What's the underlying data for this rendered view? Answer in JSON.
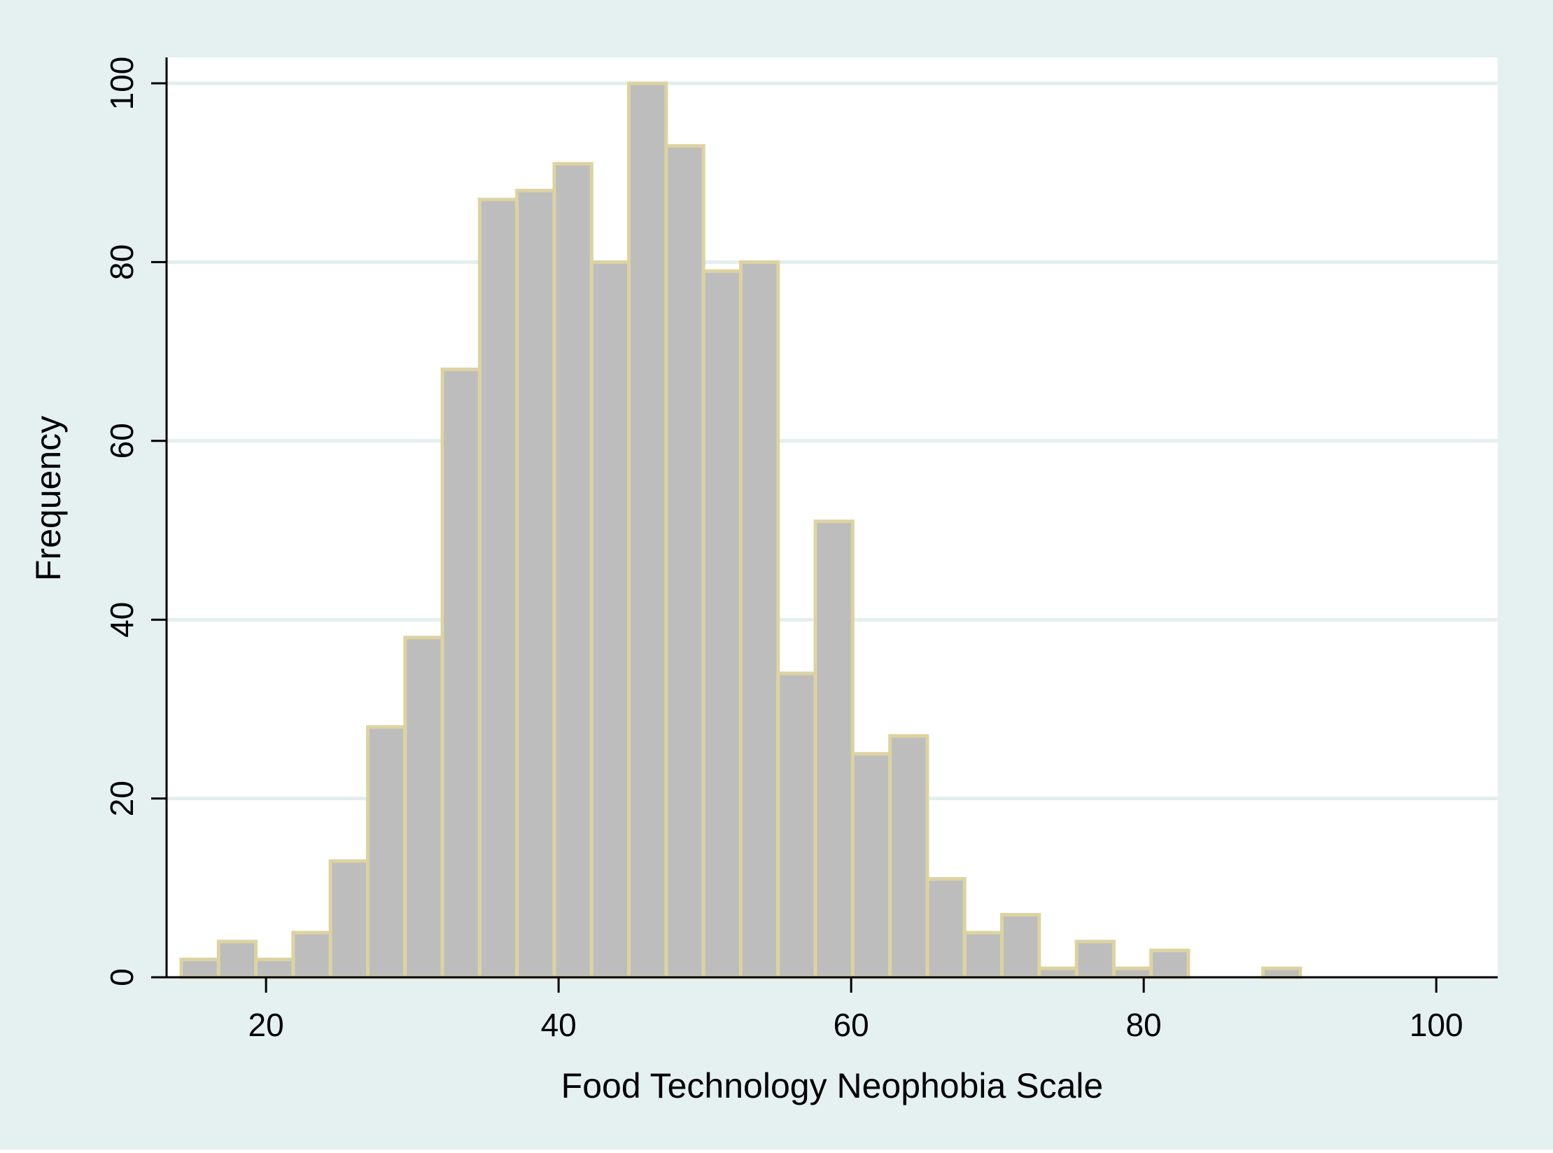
{
  "chart_data": {
    "type": "bar",
    "subtype": "histogram",
    "title": "",
    "xlabel": "Food Technology Neophobia Scale",
    "ylabel": "Frequency",
    "xlim": [
      10,
      100
    ],
    "ylim": [
      0,
      100
    ],
    "x_ticks": [
      20,
      40,
      60,
      80,
      100
    ],
    "y_ticks": [
      0,
      20,
      40,
      60,
      80,
      100
    ],
    "grid": "horizontal",
    "bin_width": 2.55,
    "bin_start": 14.2,
    "bins": [
      {
        "x": 15.48,
        "value": 2
      },
      {
        "x": 18.03,
        "value": 4
      },
      {
        "x": 20.58,
        "value": 2
      },
      {
        "x": 23.13,
        "value": 5
      },
      {
        "x": 25.68,
        "value": 13
      },
      {
        "x": 28.23,
        "value": 28
      },
      {
        "x": 30.78,
        "value": 38
      },
      {
        "x": 33.33,
        "value": 68
      },
      {
        "x": 35.88,
        "value": 87
      },
      {
        "x": 38.43,
        "value": 88
      },
      {
        "x": 40.98,
        "value": 91
      },
      {
        "x": 43.53,
        "value": 80
      },
      {
        "x": 46.08,
        "value": 100
      },
      {
        "x": 48.63,
        "value": 93
      },
      {
        "x": 51.18,
        "value": 79
      },
      {
        "x": 53.73,
        "value": 80
      },
      {
        "x": 56.28,
        "value": 34
      },
      {
        "x": 58.83,
        "value": 51
      },
      {
        "x": 61.38,
        "value": 25
      },
      {
        "x": 63.93,
        "value": 27
      },
      {
        "x": 66.48,
        "value": 11
      },
      {
        "x": 69.03,
        "value": 5
      },
      {
        "x": 71.58,
        "value": 7
      },
      {
        "x": 74.13,
        "value": 1
      },
      {
        "x": 76.68,
        "value": 4
      },
      {
        "x": 79.23,
        "value": 1
      },
      {
        "x": 81.78,
        "value": 3
      },
      {
        "x": 84.33,
        "value": 0
      },
      {
        "x": 86.88,
        "value": 0
      },
      {
        "x": 89.43,
        "value": 1
      }
    ],
    "colors": {
      "outer_background": "#e5f0f0",
      "plot_background": "#ffffff",
      "bar_fill": "#bdbdbd",
      "bar_outline": "#ddd3a0",
      "grid": "#e3eeee",
      "axis": "#000000"
    }
  }
}
